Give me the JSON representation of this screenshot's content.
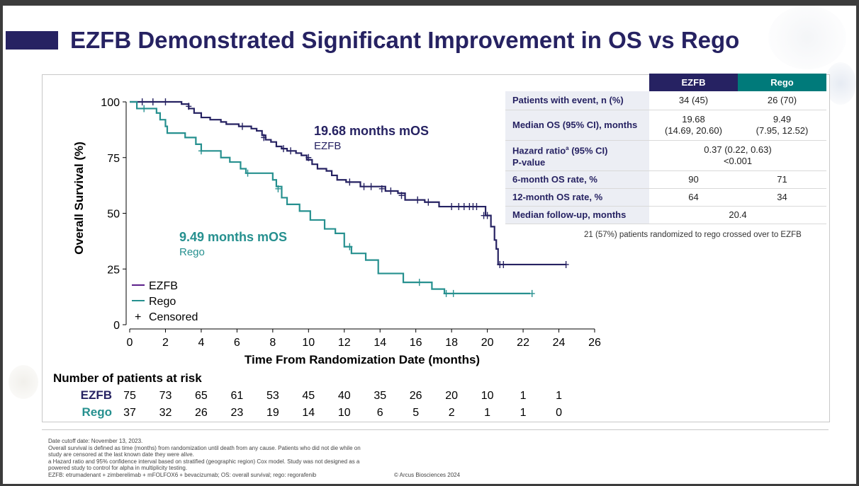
{
  "title": "EZFB Demonstrated Significant Improvement in OS vs Rego",
  "colors": {
    "ezfb": "#262262",
    "rego": "#26908f",
    "title": "#262262",
    "rego_header": "#007a7a"
  },
  "annotations": {
    "ezfb_mos": "19.68 months mOS",
    "ezfb_label": "EZFB",
    "rego_mos": "9.49 months mOS",
    "rego_label": "Rego"
  },
  "legend": {
    "ezfb": "EZFB",
    "rego": "Rego",
    "censored": "Censored",
    "censored_symbol": "+"
  },
  "risk_table": {
    "title": "Number of patients at risk",
    "rows": [
      {
        "name": "EZFB",
        "values": [
          "75",
          "73",
          "65",
          "61",
          "53",
          "45",
          "40",
          "35",
          "26",
          "20",
          "10",
          "1",
          "1"
        ]
      },
      {
        "name": "Rego",
        "values": [
          "37",
          "32",
          "26",
          "23",
          "19",
          "14",
          "10",
          "6",
          "5",
          "2",
          "1",
          "1",
          "0"
        ]
      }
    ]
  },
  "chart_data": {
    "type": "line",
    "xlabel": "Time From Randomization Date (months)",
    "ylabel": "Overall Survival (%)",
    "xlim": [
      0,
      26
    ],
    "ylim": [
      0,
      100
    ],
    "xticks": [
      "0",
      "2",
      "4",
      "6",
      "8",
      "10",
      "12",
      "14",
      "16",
      "18",
      "20",
      "22",
      "24",
      "26"
    ],
    "yticks": [
      "0",
      "25",
      "50",
      "75",
      "100"
    ],
    "legend_position": "bottom-left",
    "series": [
      {
        "name": "EZFB",
        "color": "#262262",
        "step_points": [
          [
            0,
            100
          ],
          [
            2.6,
            100
          ],
          [
            2.9,
            99
          ],
          [
            3.3,
            97
          ],
          [
            3.6,
            95
          ],
          [
            4.0,
            93
          ],
          [
            4.5,
            92
          ],
          [
            5.1,
            91
          ],
          [
            5.4,
            90
          ],
          [
            6.1,
            89
          ],
          [
            6.8,
            88
          ],
          [
            7.1,
            87
          ],
          [
            7.4,
            85
          ],
          [
            7.6,
            83
          ],
          [
            7.9,
            82
          ],
          [
            8.2,
            80
          ],
          [
            8.5,
            79
          ],
          [
            8.8,
            78
          ],
          [
            9.3,
            77
          ],
          [
            9.6,
            76
          ],
          [
            9.9,
            74
          ],
          [
            10.2,
            72
          ],
          [
            10.5,
            70
          ],
          [
            11.0,
            69
          ],
          [
            11.3,
            67
          ],
          [
            11.6,
            65
          ],
          [
            12.1,
            64
          ],
          [
            12.9,
            62
          ],
          [
            13.7,
            62
          ],
          [
            14.3,
            60
          ],
          [
            15.0,
            59
          ],
          [
            15.4,
            56
          ],
          [
            16.5,
            55
          ],
          [
            17.3,
            53
          ],
          [
            19.6,
            53
          ],
          [
            19.9,
            49
          ],
          [
            20.2,
            44
          ],
          [
            20.4,
            38
          ],
          [
            20.5,
            34
          ],
          [
            20.6,
            27
          ],
          [
            24.4,
            27
          ]
        ],
        "censored": [
          [
            0.7,
            100
          ],
          [
            1.3,
            100
          ],
          [
            2.0,
            100
          ],
          [
            3.3,
            98
          ],
          [
            6.3,
            89
          ],
          [
            7.5,
            84
          ],
          [
            8.6,
            79
          ],
          [
            9.0,
            78
          ],
          [
            10.0,
            75
          ],
          [
            12.3,
            64
          ],
          [
            13.1,
            62
          ],
          [
            13.5,
            62
          ],
          [
            14.1,
            61
          ],
          [
            14.6,
            60
          ],
          [
            15.2,
            58
          ],
          [
            16.1,
            56
          ],
          [
            16.7,
            55
          ],
          [
            18.0,
            53
          ],
          [
            18.4,
            53
          ],
          [
            18.7,
            53
          ],
          [
            19.0,
            53
          ],
          [
            19.2,
            53
          ],
          [
            19.4,
            53
          ],
          [
            19.8,
            49
          ],
          [
            20.0,
            49
          ],
          [
            20.7,
            27
          ],
          [
            20.9,
            27
          ],
          [
            24.4,
            27
          ]
        ]
      },
      {
        "name": "Rego",
        "color": "#26908f",
        "step_points": [
          [
            0,
            100
          ],
          [
            0.4,
            97
          ],
          [
            1.5,
            95
          ],
          [
            1.7,
            92
          ],
          [
            2.0,
            89
          ],
          [
            2.1,
            86
          ],
          [
            3.1,
            84
          ],
          [
            3.7,
            81
          ],
          [
            4.0,
            78
          ],
          [
            5.1,
            75
          ],
          [
            5.6,
            73
          ],
          [
            6.2,
            70
          ],
          [
            6.5,
            68
          ],
          [
            8.0,
            65
          ],
          [
            8.2,
            62
          ],
          [
            8.5,
            57
          ],
          [
            8.8,
            54
          ],
          [
            9.5,
            51
          ],
          [
            10.1,
            47
          ],
          [
            10.9,
            43
          ],
          [
            11.5,
            41
          ],
          [
            12.0,
            35
          ],
          [
            12.4,
            32
          ],
          [
            13.2,
            29
          ],
          [
            13.9,
            23
          ],
          [
            15.3,
            19
          ],
          [
            16.9,
            16
          ],
          [
            17.6,
            14
          ],
          [
            22.4,
            14
          ]
        ],
        "censored": [
          [
            0.8,
            97
          ],
          [
            4.0,
            78
          ],
          [
            6.6,
            68
          ],
          [
            8.3,
            61
          ],
          [
            12.3,
            35
          ],
          [
            16.2,
            19
          ],
          [
            17.7,
            14
          ],
          [
            18.1,
            14
          ],
          [
            22.5,
            14
          ]
        ]
      }
    ]
  },
  "stats_table": {
    "columns": [
      "EZFB",
      "Rego"
    ],
    "rows": [
      {
        "label": "Patients with event, n (%)",
        "ezfb": "34 (45)",
        "rego": "26 (70)"
      },
      {
        "label": "Median OS (95% CI), months",
        "ezfb": "19.68",
        "ezfb_ci": "(14.69, 20.60)",
        "rego": "9.49",
        "rego_ci": "(7.95, 12.52)"
      },
      {
        "label_main": "Hazard ratio",
        "label_sup": "a",
        "label_rest": " (95% CI)",
        "label_line2": "P-value",
        "value": "0.37 (0.22, 0.63)",
        "value2": "<0.001"
      },
      {
        "label": "6-month OS rate, %",
        "ezfb": "90",
        "rego": "71"
      },
      {
        "label": "12-month OS rate, %",
        "ezfb": "64",
        "rego": "34"
      },
      {
        "label": "Median follow-up, months",
        "value": "20.4"
      }
    ],
    "note": "21 (57%) patients randomized to rego crossed over to EZFB"
  },
  "footnotes": [
    "Date cutoff date: November 13, 2023.",
    "Overall survival is defined as time (months) from randomization until death from any cause. Patients who did not die while on study are censored at the last known date they were alive.",
    "a Hazard ratio and 95% confidence interval based on stratified (geographic region) Cox model. Study was not designed as a powered study to control for alpha in multiplicity testing.",
    "EZFB: etrumadenant + zimberelimab + mFOLFOX6 + bevacizumab; OS: overall survival; rego: regorafenib"
  ],
  "copyright": "© Arcus Biosciences 2024"
}
